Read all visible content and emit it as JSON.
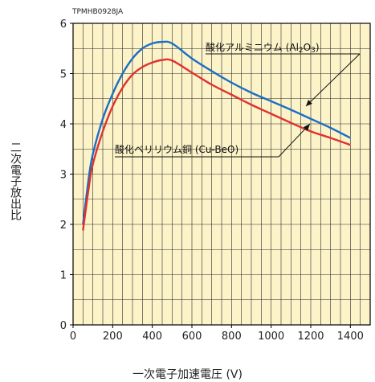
{
  "chart_data": {
    "type": "line",
    "tag": "TPMHB0928JA",
    "xlabel": "一次電子加速電圧 (V)",
    "ylabel": "二次電子放出比",
    "xlim": [
      0,
      1500
    ],
    "ylim": [
      0,
      6
    ],
    "xticks": [
      0,
      200,
      400,
      600,
      800,
      1000,
      1200,
      1400
    ],
    "yticks": [
      0,
      1,
      2,
      3,
      4,
      5,
      6
    ],
    "grid": true,
    "background": "#fdf3c8",
    "series": [
      {
        "name": "酸化アルミニウム (Al2O3)",
        "color": "#1a6fc4",
        "x": [
          50,
          80,
          100,
          150,
          200,
          250,
          300,
          350,
          400,
          450,
          500,
          600,
          700,
          800,
          900,
          1000,
          1100,
          1200,
          1300,
          1400
        ],
        "y": [
          2.0,
          2.95,
          3.4,
          4.1,
          4.6,
          5.0,
          5.3,
          5.5,
          5.6,
          5.63,
          5.6,
          5.3,
          5.05,
          4.82,
          4.62,
          4.45,
          4.28,
          4.1,
          3.92,
          3.72
        ]
      },
      {
        "name": "酸化ベリリウム銅 (Cu-BeO)",
        "color": "#e0312f",
        "x": [
          50,
          80,
          100,
          150,
          200,
          250,
          300,
          350,
          400,
          450,
          500,
          600,
          700,
          800,
          900,
          1000,
          1100,
          1200,
          1300,
          1400
        ],
        "y": [
          1.88,
          2.75,
          3.2,
          3.85,
          4.35,
          4.72,
          4.98,
          5.13,
          5.22,
          5.27,
          5.26,
          5.02,
          4.78,
          4.58,
          4.38,
          4.2,
          4.02,
          3.85,
          3.72,
          3.58
        ]
      }
    ],
    "annotations": [
      {
        "text": "酸化アルミニウム (Al",
        "sub": "2",
        "mid": "O",
        "sub2": "3",
        "end": ")"
      },
      {
        "text": "酸化ベリリウム銅 (Cu-BeO)"
      }
    ]
  }
}
